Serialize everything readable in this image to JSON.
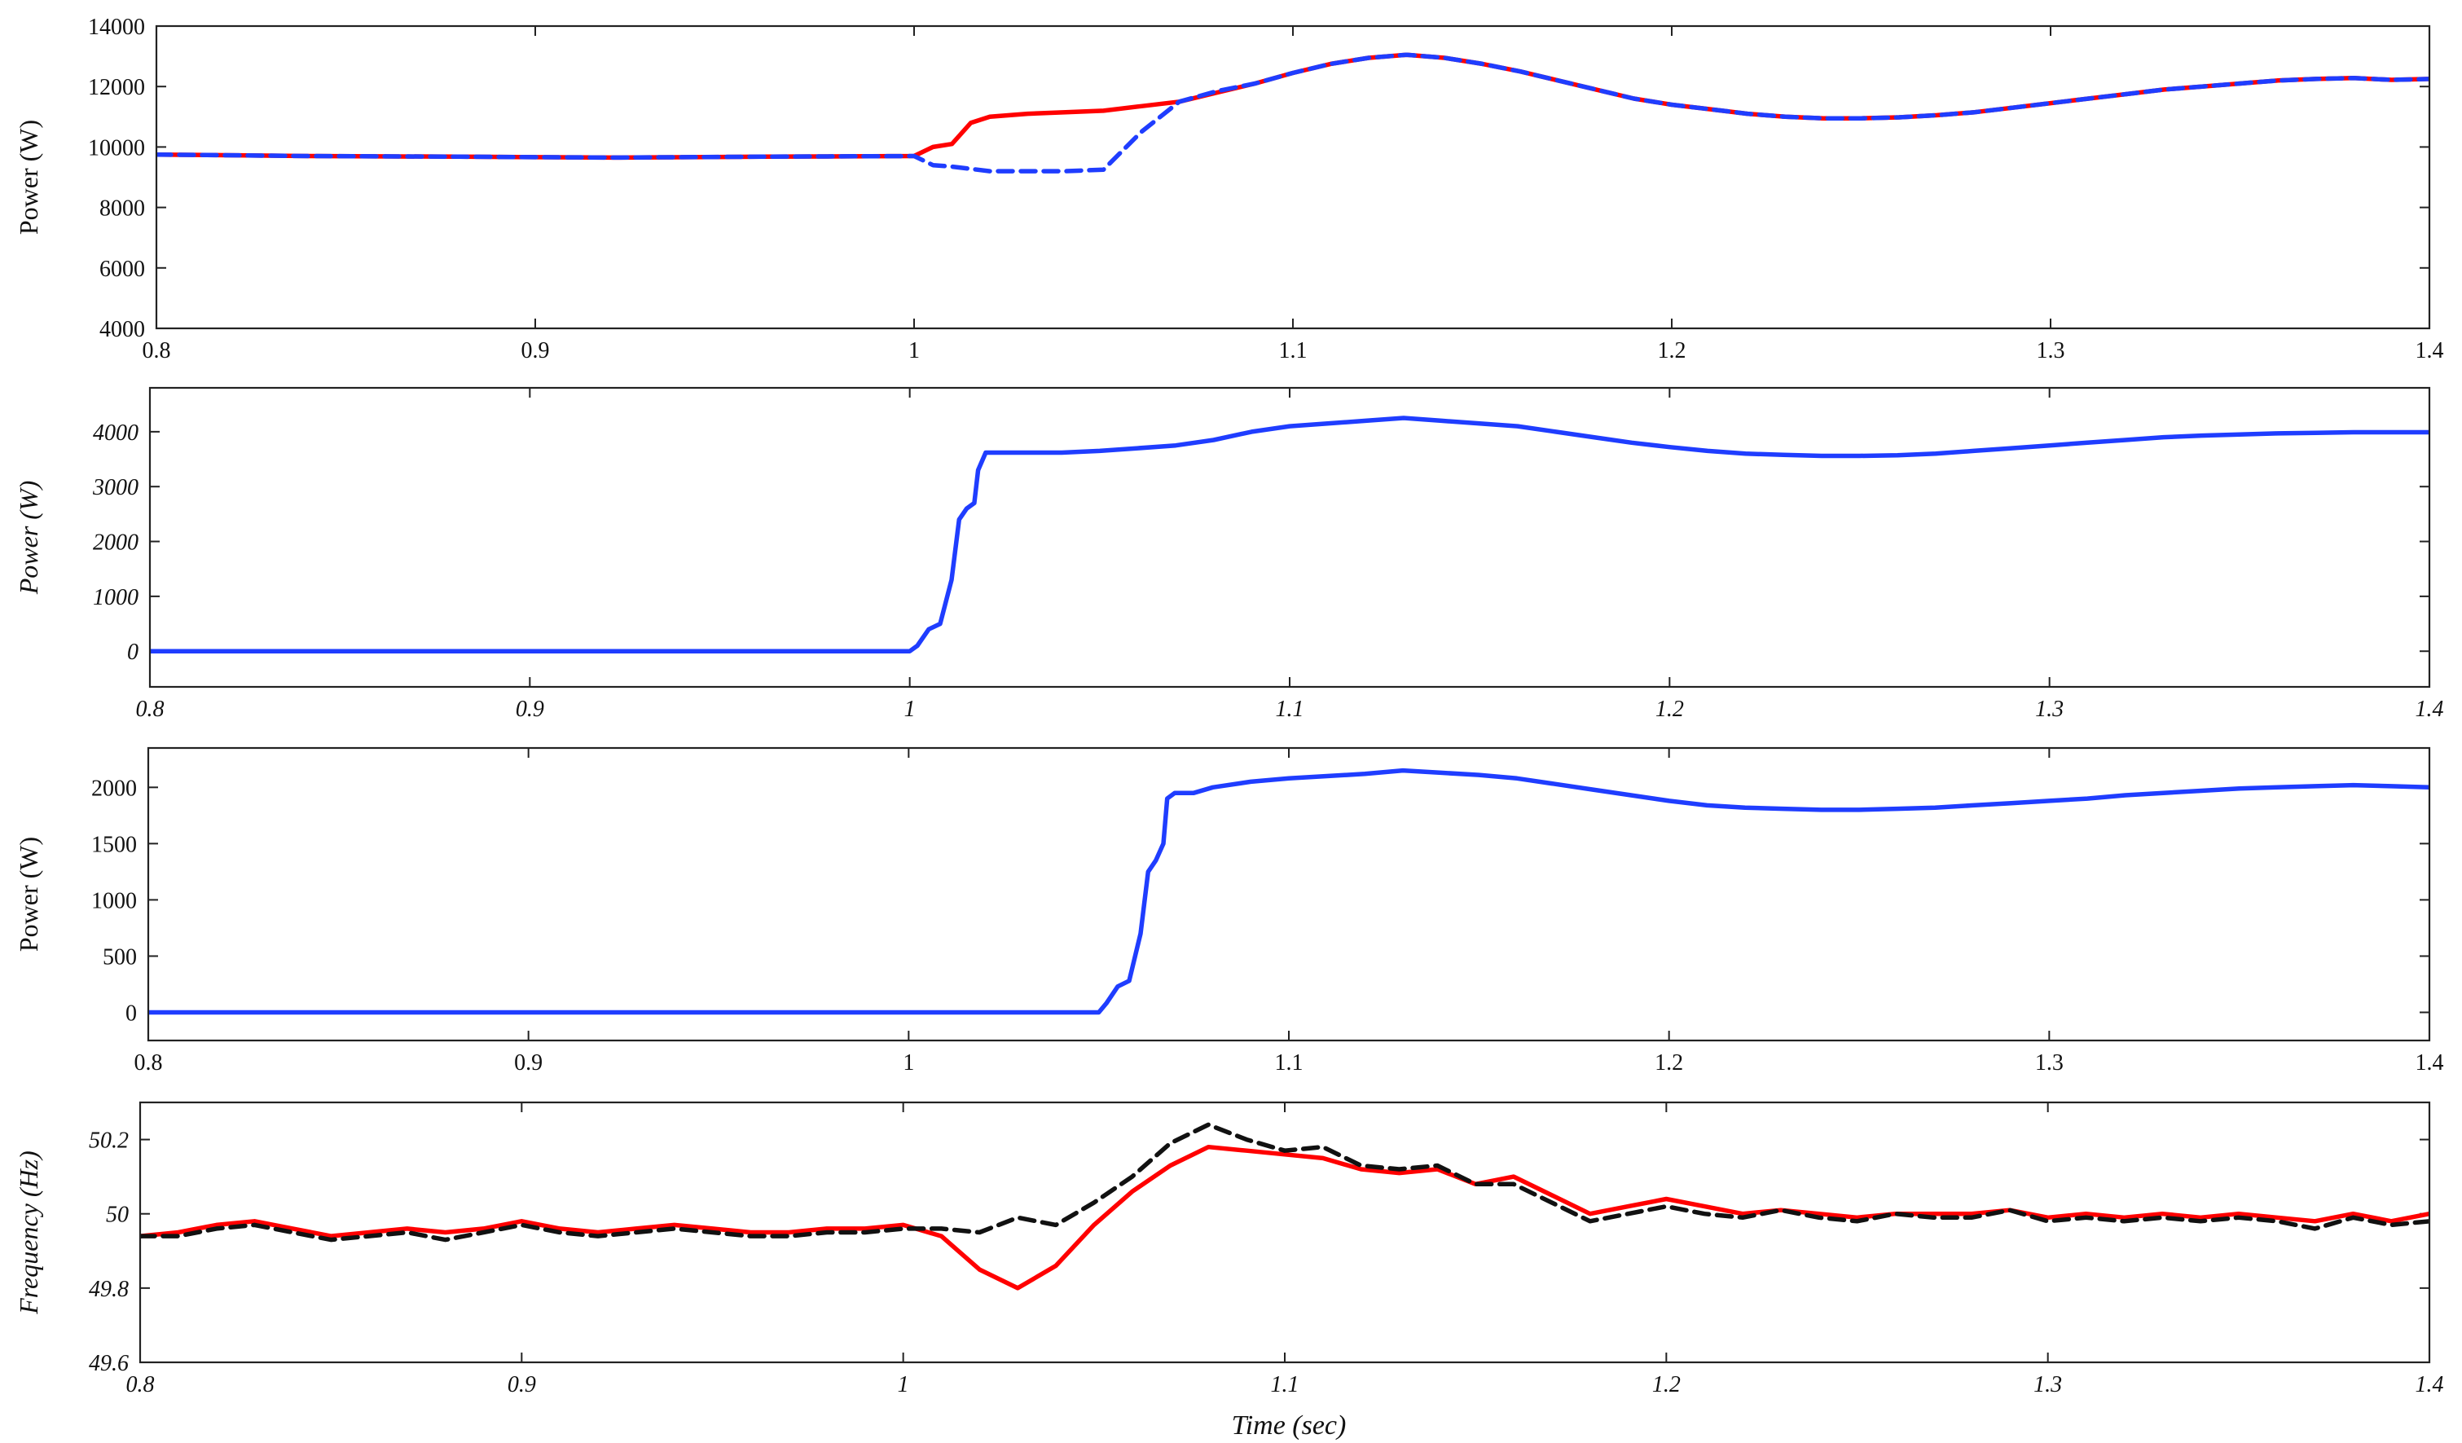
{
  "chart_data": [
    {
      "type": "line",
      "ylabel": "Power (W)",
      "italic": false,
      "xlim": [
        0.8,
        1.4
      ],
      "ylim": [
        4000,
        14000
      ],
      "xticks": [
        0.8,
        0.9,
        1,
        1.1,
        1.2,
        1.3,
        1.4
      ],
      "xtick_labels": [
        "0.8",
        "0.9",
        "1",
        "1.1",
        "1.2",
        "1.3",
        "1.4"
      ],
      "yticks": [
        4000,
        6000,
        8000,
        10000,
        12000,
        14000
      ],
      "ytick_labels": [
        "4000",
        "6000",
        "8000",
        "10000",
        "12000",
        "14000"
      ],
      "grid": false,
      "series": [
        {
          "color": "#ff0000",
          "style": "solid",
          "x": [
            0.8,
            0.84,
            0.88,
            0.92,
            0.96,
            1.0,
            1.005,
            1.01,
            1.015,
            1.02,
            1.03,
            1.04,
            1.05,
            1.06,
            1.07,
            1.08,
            1.09,
            1.1,
            1.11,
            1.12,
            1.13,
            1.14,
            1.15,
            1.16,
            1.17,
            1.18,
            1.19,
            1.2,
            1.21,
            1.22,
            1.23,
            1.24,
            1.25,
            1.26,
            1.27,
            1.28,
            1.29,
            1.3,
            1.31,
            1.32,
            1.33,
            1.34,
            1.35,
            1.36,
            1.37,
            1.38,
            1.39,
            1.4
          ],
          "y": [
            9750,
            9700,
            9680,
            9650,
            9680,
            9700,
            10000,
            10100,
            10800,
            11000,
            11100,
            11150,
            11200,
            11350,
            11500,
            11800,
            12100,
            12450,
            12750,
            12950,
            13050,
            12950,
            12750,
            12500,
            12200,
            11900,
            11600,
            11400,
            11250,
            11100,
            11000,
            10950,
            10950,
            10980,
            11050,
            11150,
            11300,
            11450,
            11600,
            11750,
            11900,
            12000,
            12100,
            12200,
            12250,
            12280,
            12220,
            12250
          ]
        },
        {
          "color": "#1f3dff",
          "style": "dashed",
          "x": [
            0.8,
            0.84,
            0.88,
            0.92,
            0.96,
            1.0,
            1.005,
            1.01,
            1.02,
            1.03,
            1.04,
            1.05,
            1.06,
            1.07,
            1.08,
            1.09,
            1.1,
            1.11,
            1.12,
            1.13,
            1.14,
            1.15,
            1.16,
            1.17,
            1.18,
            1.19,
            1.2,
            1.21,
            1.22,
            1.23,
            1.24,
            1.25,
            1.26,
            1.27,
            1.28,
            1.29,
            1.3,
            1.31,
            1.32,
            1.33,
            1.34,
            1.35,
            1.36,
            1.37,
            1.38,
            1.39,
            1.4
          ],
          "y": [
            9750,
            9700,
            9680,
            9650,
            9680,
            9700,
            9400,
            9350,
            9200,
            9200,
            9200,
            9250,
            10500,
            11500,
            11850,
            12100,
            12450,
            12750,
            12950,
            13050,
            12950,
            12750,
            12500,
            12200,
            11900,
            11600,
            11400,
            11250,
            11100,
            11000,
            10950,
            10950,
            10980,
            11050,
            11150,
            11300,
            11450,
            11600,
            11750,
            11900,
            12000,
            12100,
            12200,
            12250,
            12280,
            12220,
            12250
          ]
        }
      ]
    },
    {
      "type": "line",
      "ylabel": "Power (W)",
      "italic": true,
      "xlim": [
        0.8,
        1.4
      ],
      "ylim": [
        -650,
        4800
      ],
      "xticks": [
        0.8,
        0.9,
        1,
        1.1,
        1.2,
        1.3,
        1.4
      ],
      "xtick_labels": [
        "0.8",
        "0.9",
        "1",
        "1.1",
        "1.2",
        "1.3",
        "1.4"
      ],
      "yticks": [
        0,
        1000,
        2000,
        3000,
        4000
      ],
      "ytick_labels": [
        "0",
        "1000",
        "2000",
        "3000",
        "4000"
      ],
      "grid": false,
      "series": [
        {
          "color": "#1f3dff",
          "style": "solid",
          "x": [
            0.8,
            0.9,
            1.0,
            1.002,
            1.005,
            1.008,
            1.011,
            1.013,
            1.015,
            1.017,
            1.018,
            1.02,
            1.022,
            1.025,
            1.04,
            1.05,
            1.06,
            1.07,
            1.08,
            1.09,
            1.1,
            1.11,
            1.12,
            1.13,
            1.14,
            1.15,
            1.16,
            1.17,
            1.18,
            1.19,
            1.2,
            1.21,
            1.22,
            1.23,
            1.24,
            1.25,
            1.26,
            1.27,
            1.28,
            1.29,
            1.3,
            1.31,
            1.32,
            1.33,
            1.34,
            1.35,
            1.36,
            1.37,
            1.38,
            1.39,
            1.4
          ],
          "y": [
            0,
            0,
            0,
            100,
            400,
            500,
            1300,
            2400,
            2600,
            2700,
            3300,
            3620,
            3620,
            3620,
            3620,
            3650,
            3700,
            3750,
            3850,
            4000,
            4100,
            4150,
            4200,
            4250,
            4200,
            4150,
            4100,
            4000,
            3900,
            3800,
            3720,
            3650,
            3600,
            3580,
            3560,
            3560,
            3570,
            3600,
            3650,
            3700,
            3750,
            3800,
            3850,
            3900,
            3930,
            3950,
            3970,
            3980,
            3990,
            3990,
            3990
          ]
        }
      ]
    },
    {
      "type": "line",
      "ylabel": "Power (W)",
      "italic": false,
      "xlim": [
        0.8,
        1.4
      ],
      "ylim": [
        -250,
        2350
      ],
      "xticks": [
        0.8,
        0.9,
        1,
        1.1,
        1.2,
        1.3,
        1.4
      ],
      "xtick_labels": [
        "0.8",
        "0.9",
        "1",
        "1.1",
        "1.2",
        "1.3",
        "1.4"
      ],
      "yticks": [
        0,
        500,
        1000,
        1500,
        2000
      ],
      "ytick_labels": [
        "0",
        "500",
        "1000",
        "1500",
        "2000"
      ],
      "grid": false,
      "series": [
        {
          "color": "#1f3dff",
          "style": "solid",
          "x": [
            0.8,
            0.9,
            1.0,
            1.05,
            1.052,
            1.055,
            1.058,
            1.061,
            1.063,
            1.065,
            1.067,
            1.068,
            1.07,
            1.075,
            1.08,
            1.09,
            1.1,
            1.11,
            1.12,
            1.13,
            1.14,
            1.15,
            1.16,
            1.17,
            1.18,
            1.19,
            1.2,
            1.21,
            1.22,
            1.23,
            1.24,
            1.25,
            1.26,
            1.27,
            1.28,
            1.29,
            1.3,
            1.31,
            1.32,
            1.33,
            1.34,
            1.35,
            1.36,
            1.37,
            1.38,
            1.39,
            1.4
          ],
          "y": [
            0,
            0,
            0,
            0,
            80,
            230,
            280,
            700,
            1250,
            1350,
            1500,
            1900,
            1950,
            1950,
            2000,
            2050,
            2080,
            2100,
            2120,
            2150,
            2130,
            2110,
            2080,
            2030,
            1980,
            1930,
            1880,
            1840,
            1820,
            1810,
            1800,
            1800,
            1810,
            1820,
            1840,
            1860,
            1880,
            1900,
            1930,
            1950,
            1970,
            1990,
            2000,
            2010,
            2020,
            2010,
            2000
          ]
        }
      ]
    },
    {
      "type": "line",
      "ylabel": "Frequency (Hz)",
      "italic": true,
      "xlabel": "Time (sec)",
      "xlim": [
        0.8,
        1.4
      ],
      "ylim": [
        49.6,
        50.3
      ],
      "xticks": [
        0.8,
        0.9,
        1,
        1.1,
        1.2,
        1.3,
        1.4
      ],
      "xtick_labels": [
        "0.8",
        "0.9",
        "1",
        "1.1",
        "1.2",
        "1.3",
        "1.4"
      ],
      "yticks": [
        49.6,
        49.8,
        50,
        50.2
      ],
      "ytick_labels": [
        "49.6",
        "49.8",
        "50",
        "50.2"
      ],
      "grid": false,
      "series": [
        {
          "color": "#ff0000",
          "style": "solid",
          "x": [
            0.8,
            0.81,
            0.82,
            0.83,
            0.84,
            0.85,
            0.86,
            0.87,
            0.88,
            0.89,
            0.9,
            0.91,
            0.92,
            0.93,
            0.94,
            0.95,
            0.96,
            0.97,
            0.98,
            0.99,
            1.0,
            1.01,
            1.02,
            1.03,
            1.04,
            1.05,
            1.06,
            1.07,
            1.08,
            1.09,
            1.1,
            1.11,
            1.12,
            1.13,
            1.14,
            1.15,
            1.16,
            1.17,
            1.18,
            1.19,
            1.2,
            1.21,
            1.22,
            1.23,
            1.24,
            1.25,
            1.26,
            1.27,
            1.28,
            1.29,
            1.3,
            1.31,
            1.32,
            1.33,
            1.34,
            1.35,
            1.36,
            1.37,
            1.38,
            1.39,
            1.4
          ],
          "y": [
            49.94,
            49.95,
            49.97,
            49.98,
            49.96,
            49.94,
            49.95,
            49.96,
            49.95,
            49.96,
            49.98,
            49.96,
            49.95,
            49.96,
            49.97,
            49.96,
            49.95,
            49.95,
            49.96,
            49.96,
            49.97,
            49.94,
            49.85,
            49.8,
            49.86,
            49.97,
            50.06,
            50.13,
            50.18,
            50.17,
            50.16,
            50.15,
            50.12,
            50.11,
            50.12,
            50.08,
            50.1,
            50.05,
            50.0,
            50.02,
            50.04,
            50.02,
            50.0,
            50.01,
            50.0,
            49.99,
            50.0,
            50.0,
            50.0,
            50.01,
            49.99,
            50.0,
            49.99,
            50.0,
            49.99,
            50.0,
            49.99,
            49.98,
            50.0,
            49.98,
            50.0
          ]
        },
        {
          "color": "#111111",
          "style": "dashed",
          "x": [
            0.8,
            0.81,
            0.82,
            0.83,
            0.84,
            0.85,
            0.86,
            0.87,
            0.88,
            0.89,
            0.9,
            0.91,
            0.92,
            0.93,
            0.94,
            0.95,
            0.96,
            0.97,
            0.98,
            0.99,
            1.0,
            1.01,
            1.02,
            1.03,
            1.04,
            1.05,
            1.06,
            1.07,
            1.08,
            1.09,
            1.1,
            1.11,
            1.12,
            1.13,
            1.14,
            1.15,
            1.16,
            1.17,
            1.18,
            1.19,
            1.2,
            1.21,
            1.22,
            1.23,
            1.24,
            1.25,
            1.26,
            1.27,
            1.28,
            1.29,
            1.3,
            1.31,
            1.32,
            1.33,
            1.34,
            1.35,
            1.36,
            1.37,
            1.38,
            1.39,
            1.4
          ],
          "y": [
            49.94,
            49.94,
            49.96,
            49.97,
            49.95,
            49.93,
            49.94,
            49.95,
            49.93,
            49.95,
            49.97,
            49.95,
            49.94,
            49.95,
            49.96,
            49.95,
            49.94,
            49.94,
            49.95,
            49.95,
            49.96,
            49.96,
            49.95,
            49.99,
            49.97,
            50.03,
            50.1,
            50.19,
            50.24,
            50.2,
            50.17,
            50.18,
            50.13,
            50.12,
            50.13,
            50.08,
            50.08,
            50.03,
            49.98,
            50.0,
            50.02,
            50.0,
            49.99,
            50.01,
            49.99,
            49.98,
            50.0,
            49.99,
            49.99,
            50.01,
            49.98,
            49.99,
            49.98,
            49.99,
            49.98,
            49.99,
            49.98,
            49.96,
            49.99,
            49.97,
            49.98
          ]
        }
      ]
    }
  ]
}
